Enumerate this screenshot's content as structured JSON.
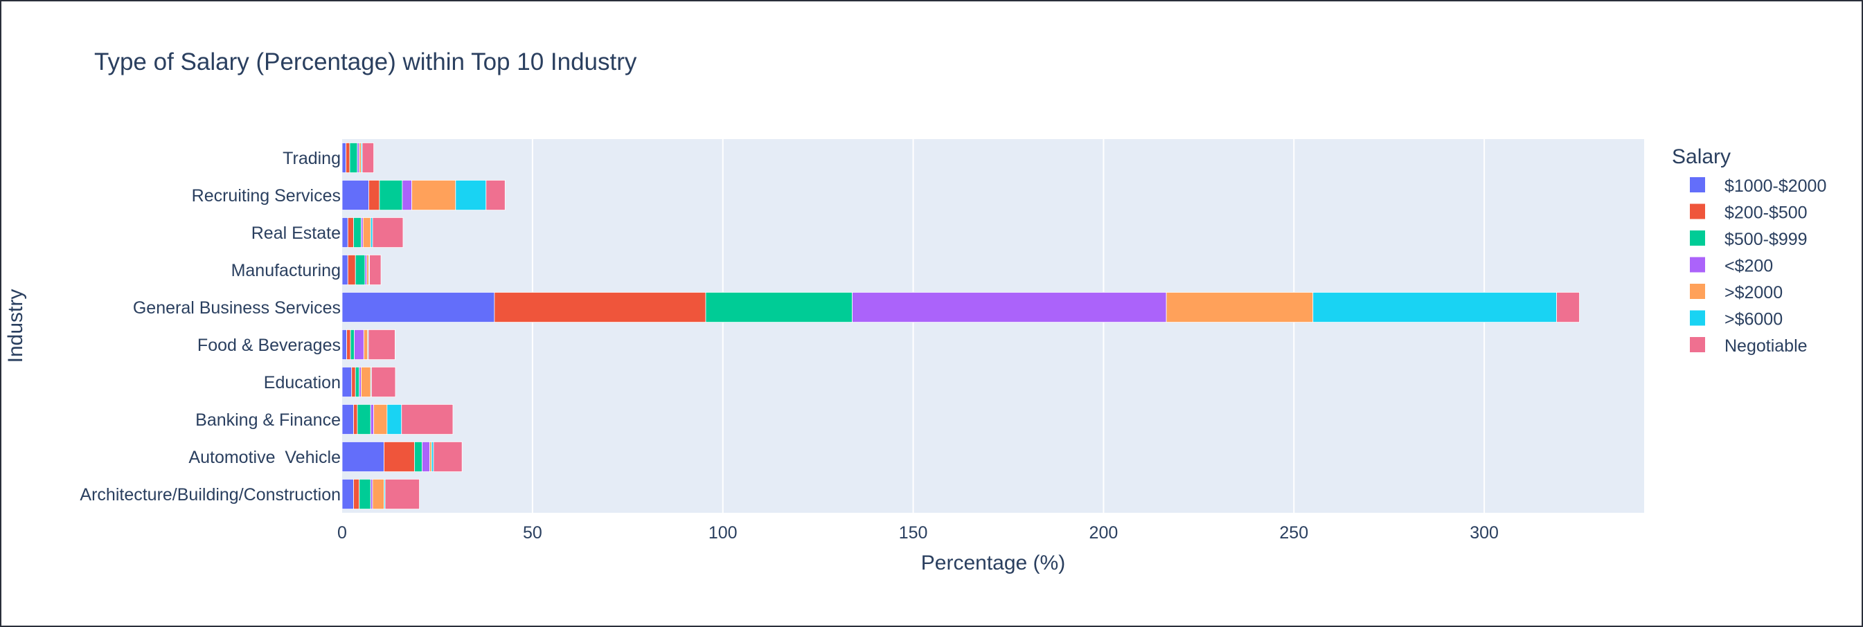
{
  "chart_data": {
    "type": "bar",
    "orientation": "horizontal",
    "barmode": "stack",
    "title": "Type of Salary (Percentage) within Top 10 Industry",
    "xlabel": "Percentage (%)",
    "ylabel": "Industry",
    "xlim": [
      0,
      342
    ],
    "xticks": [
      0,
      50,
      100,
      150,
      200,
      250,
      300
    ],
    "legend_title": "Salary",
    "legend_position": "right",
    "categories": [
      "Architecture/Building/Construction",
      "Automotive  Vehicle",
      "Banking & Finance",
      "Education",
      "Food & Beverages",
      "General Business Services",
      "Manufacturing",
      "Real Estate",
      "Recruiting Services",
      "Trading"
    ],
    "series": [
      {
        "name": "$1000-$2000",
        "color": "#636efa",
        "values": [
          3,
          11,
          3,
          2.5,
          1.2,
          40,
          1.5,
          1.5,
          7,
          1
        ]
      },
      {
        "name": "$200-$500",
        "color": "#ef553b",
        "values": [
          1.5,
          8,
          1,
          1,
          1,
          55.5,
          2,
          1.5,
          2.8,
          1
        ]
      },
      {
        "name": "$500-$999",
        "color": "#00cc96",
        "values": [
          3,
          2,
          3.5,
          1,
          1,
          38.5,
          2.5,
          2,
          6,
          2
        ]
      },
      {
        "name": "<$200",
        "color": "#ab63fa",
        "values": [
          0.5,
          2,
          0.8,
          0.5,
          2.5,
          82.5,
          0.5,
          0.5,
          2.5,
          0.5
        ]
      },
      {
        "name": ">$2000",
        "color": "#ffa15a",
        "values": [
          3,
          0.5,
          3.5,
          2.5,
          1,
          38.5,
          0.5,
          2,
          11.5,
          0.5
        ]
      },
      {
        "name": ">$6000",
        "color": "#19d3f3",
        "values": [
          0.3,
          0.5,
          3.8,
          0.2,
          0.2,
          64,
          0.2,
          0.5,
          8,
          0.3
        ]
      },
      {
        "name": "Negotiable",
        "color": "#ef7090",
        "values": [
          9,
          7.5,
          13.5,
          6.3,
          7,
          6,
          3,
          8,
          5,
          3
        ]
      }
    ]
  }
}
